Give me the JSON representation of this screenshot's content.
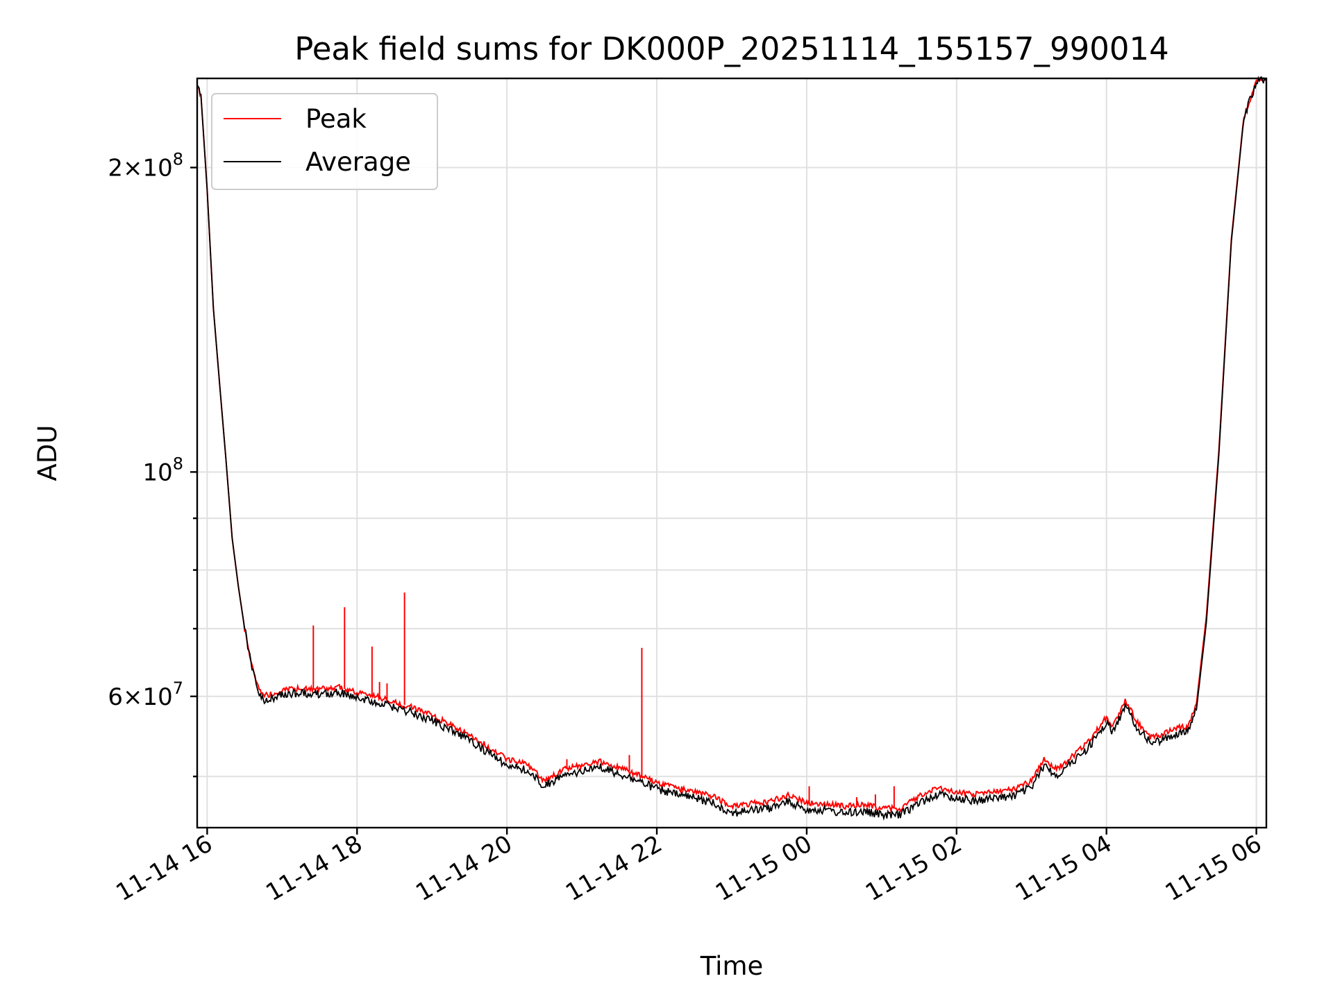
{
  "chart_data": {
    "type": "line",
    "title": "Peak field sums for DK000P_20251114_155157_990014",
    "xlabel": "Time",
    "ylabel": "ADU",
    "yscale": "log",
    "ylim": [
      44500000,
      245000000
    ],
    "xlim": [
      "2025-11-14 15:52",
      "2025-11-15 06:08"
    ],
    "grid": true,
    "legend_position": "top-left",
    "x_ticks": [
      {
        "value": "2025-11-14 16:00",
        "label": "11-14 16"
      },
      {
        "value": "2025-11-14 18:00",
        "label": "11-14 18"
      },
      {
        "value": "2025-11-14 20:00",
        "label": "11-14 20"
      },
      {
        "value": "2025-11-14 22:00",
        "label": "11-14 22"
      },
      {
        "value": "2025-11-15 00:00",
        "label": "11-15 00"
      },
      {
        "value": "2025-11-15 02:00",
        "label": "11-15 02"
      },
      {
        "value": "2025-11-15 04:00",
        "label": "11-15 04"
      },
      {
        "value": "2025-11-15 06:00",
        "label": "11-15 06"
      }
    ],
    "y_ticks": [
      {
        "value": 200000000,
        "mantissa": "2",
        "exponent": "8"
      },
      {
        "value": 100000000,
        "mantissa": "",
        "exponent": "8"
      },
      {
        "value": 60000000,
        "mantissa": "6",
        "exponent": "7"
      }
    ],
    "y_minor_ticks": [
      50000000,
      70000000,
      80000000,
      90000000
    ],
    "series": [
      {
        "name": "Peak",
        "color": "#ff0000",
        "points": [
          [
            "2025-11-14 15:52",
            240000000
          ],
          [
            "2025-11-14 15:55",
            236000000
          ],
          [
            "2025-11-14 16:00",
            190000000
          ],
          [
            "2025-11-14 16:05",
            145000000
          ],
          [
            "2025-11-14 16:10",
            122000000
          ],
          [
            "2025-11-14 16:15",
            103000000
          ],
          [
            "2025-11-14 16:20",
            86000000
          ],
          [
            "2025-11-14 16:25",
            77000000
          ],
          [
            "2025-11-14 16:30",
            70000000
          ],
          [
            "2025-11-14 16:35",
            65000000
          ],
          [
            "2025-11-14 16:40",
            61500000
          ],
          [
            "2025-11-14 16:45",
            60000000
          ],
          [
            "2025-11-14 16:50",
            60300000
          ],
          [
            "2025-11-14 17:00",
            60800000
          ],
          [
            "2025-11-14 17:15",
            61200000
          ],
          [
            "2025-11-14 17:30",
            61000000
          ],
          [
            "2025-11-14 17:45",
            61300000
          ],
          [
            "2025-11-14 18:00",
            60500000
          ],
          [
            "2025-11-14 18:15",
            60000000
          ],
          [
            "2025-11-14 18:30",
            59200000
          ],
          [
            "2025-11-14 18:45",
            58500000
          ],
          [
            "2025-11-14 19:00",
            57500000
          ],
          [
            "2025-11-14 19:15",
            56200000
          ],
          [
            "2025-11-14 19:30",
            55000000
          ],
          [
            "2025-11-14 19:45",
            53500000
          ],
          [
            "2025-11-14 20:00",
            52000000
          ],
          [
            "2025-11-14 20:15",
            51500000
          ],
          [
            "2025-11-14 20:30",
            49500000
          ],
          [
            "2025-11-14 20:45",
            50800000
          ],
          [
            "2025-11-14 21:00",
            51300000
          ],
          [
            "2025-11-14 21:15",
            51700000
          ],
          [
            "2025-11-14 21:30",
            51000000
          ],
          [
            "2025-11-14 21:45",
            50200000
          ],
          [
            "2025-11-14 22:00",
            49300000
          ],
          [
            "2025-11-14 22:15",
            48700000
          ],
          [
            "2025-11-14 22:30",
            48300000
          ],
          [
            "2025-11-14 22:45",
            47800000
          ],
          [
            "2025-11-14 23:00",
            46700000
          ],
          [
            "2025-11-14 23:15",
            47000000
          ],
          [
            "2025-11-14 23:30",
            47200000
          ],
          [
            "2025-11-14 23:45",
            47900000
          ],
          [
            "2025-11-15 00:00",
            47100000
          ],
          [
            "2025-11-15 00:15",
            47000000
          ],
          [
            "2025-11-15 00:30",
            46700000
          ],
          [
            "2025-11-15 00:45",
            46900000
          ],
          [
            "2025-11-15 01:00",
            46500000
          ],
          [
            "2025-11-15 01:15",
            46500000
          ],
          [
            "2025-11-15 01:30",
            47800000
          ],
          [
            "2025-11-15 01:45",
            48700000
          ],
          [
            "2025-11-15 02:00",
            48300000
          ],
          [
            "2025-11-15 02:15",
            48000000
          ],
          [
            "2025-11-15 02:30",
            48300000
          ],
          [
            "2025-11-15 02:45",
            48500000
          ],
          [
            "2025-11-15 03:00",
            49500000
          ],
          [
            "2025-11-15 03:10",
            52000000
          ],
          [
            "2025-11-15 03:20",
            50800000
          ],
          [
            "2025-11-15 03:30",
            52000000
          ],
          [
            "2025-11-15 03:45",
            54000000
          ],
          [
            "2025-11-15 04:00",
            57200000
          ],
          [
            "2025-11-15 04:05",
            56000000
          ],
          [
            "2025-11-15 04:15",
            59500000
          ],
          [
            "2025-11-15 04:25",
            56500000
          ],
          [
            "2025-11-15 04:35",
            54700000
          ],
          [
            "2025-11-15 04:45",
            55000000
          ],
          [
            "2025-11-15 04:55",
            55800000
          ],
          [
            "2025-11-15 05:05",
            56000000
          ],
          [
            "2025-11-15 05:12",
            59000000
          ],
          [
            "2025-11-15 05:20",
            72000000
          ],
          [
            "2025-11-15 05:30",
            105000000
          ],
          [
            "2025-11-15 05:40",
            170000000
          ],
          [
            "2025-11-15 05:50",
            225000000
          ],
          [
            "2025-11-15 06:00",
            243000000
          ],
          [
            "2025-11-15 06:08",
            245000000
          ]
        ],
        "spikes": [
          [
            "2025-11-14 17:25",
            70500000
          ],
          [
            "2025-11-14 17:50",
            73500000
          ],
          [
            "2025-11-14 18:12",
            67200000
          ],
          [
            "2025-11-14 18:18",
            62000000
          ],
          [
            "2025-11-14 18:24",
            61800000
          ],
          [
            "2025-11-14 18:38",
            76000000
          ],
          [
            "2025-11-14 21:38",
            52500000
          ],
          [
            "2025-11-14 21:48",
            67000000
          ],
          [
            "2025-11-14 20:48",
            52000000
          ],
          [
            "2025-11-15 00:02",
            48900000
          ],
          [
            "2025-11-15 00:40",
            47700000
          ],
          [
            "2025-11-15 00:55",
            48000000
          ],
          [
            "2025-11-15 01:10",
            48900000
          ]
        ]
      },
      {
        "name": "Average",
        "color": "#000000",
        "points": [
          [
            "2025-11-14 15:52",
            240000000
          ],
          [
            "2025-11-14 15:55",
            236000000
          ],
          [
            "2025-11-14 16:00",
            190000000
          ],
          [
            "2025-11-14 16:05",
            145000000
          ],
          [
            "2025-11-14 16:10",
            122000000
          ],
          [
            "2025-11-14 16:15",
            103000000
          ],
          [
            "2025-11-14 16:20",
            86000000
          ],
          [
            "2025-11-14 16:25",
            77000000
          ],
          [
            "2025-11-14 16:30",
            70000000
          ],
          [
            "2025-11-14 16:35",
            65000000
          ],
          [
            "2025-11-14 16:40",
            61000000
          ],
          [
            "2025-11-14 16:45",
            59300000
          ],
          [
            "2025-11-14 16:50",
            59700000
          ],
          [
            "2025-11-14 17:00",
            60200000
          ],
          [
            "2025-11-14 17:15",
            60500000
          ],
          [
            "2025-11-14 17:30",
            60300000
          ],
          [
            "2025-11-14 17:45",
            60600000
          ],
          [
            "2025-11-14 18:00",
            59800000
          ],
          [
            "2025-11-14 18:15",
            59300000
          ],
          [
            "2025-11-14 18:30",
            58500000
          ],
          [
            "2025-11-14 18:45",
            57800000
          ],
          [
            "2025-11-14 19:00",
            56800000
          ],
          [
            "2025-11-14 19:15",
            55500000
          ],
          [
            "2025-11-14 19:30",
            54300000
          ],
          [
            "2025-11-14 19:45",
            52800000
          ],
          [
            "2025-11-14 20:00",
            51300000
          ],
          [
            "2025-11-14 20:15",
            50800000
          ],
          [
            "2025-11-14 20:30",
            48900000
          ],
          [
            "2025-11-14 20:45",
            50100000
          ],
          [
            "2025-11-14 21:00",
            50600000
          ],
          [
            "2025-11-14 21:15",
            51000000
          ],
          [
            "2025-11-14 21:30",
            50300000
          ],
          [
            "2025-11-14 21:45",
            49500000
          ],
          [
            "2025-11-14 22:00",
            48600000
          ],
          [
            "2025-11-14 22:15",
            48000000
          ],
          [
            "2025-11-14 22:30",
            47600000
          ],
          [
            "2025-11-14 22:45",
            47100000
          ],
          [
            "2025-11-14 23:00",
            46000000
          ],
          [
            "2025-11-14 23:15",
            46300000
          ],
          [
            "2025-11-14 23:30",
            46500000
          ],
          [
            "2025-11-14 23:45",
            47200000
          ],
          [
            "2025-11-15 00:00",
            46400000
          ],
          [
            "2025-11-15 00:15",
            46300000
          ],
          [
            "2025-11-15 00:30",
            46000000
          ],
          [
            "2025-11-15 00:45",
            46200000
          ],
          [
            "2025-11-15 01:00",
            45800000
          ],
          [
            "2025-11-15 01:15",
            45800000
          ],
          [
            "2025-11-15 01:30",
            47100000
          ],
          [
            "2025-11-15 01:45",
            48000000
          ],
          [
            "2025-11-15 02:00",
            47600000
          ],
          [
            "2025-11-15 02:15",
            47300000
          ],
          [
            "2025-11-15 02:30",
            47600000
          ],
          [
            "2025-11-15 02:45",
            47800000
          ],
          [
            "2025-11-15 03:00",
            48800000
          ],
          [
            "2025-11-15 03:10",
            51300000
          ],
          [
            "2025-11-15 03:20",
            50100000
          ],
          [
            "2025-11-15 03:30",
            51300000
          ],
          [
            "2025-11-15 03:45",
            53300000
          ],
          [
            "2025-11-15 04:00",
            56500000
          ],
          [
            "2025-11-15 04:05",
            55300000
          ],
          [
            "2025-11-15 04:15",
            58700000
          ],
          [
            "2025-11-15 04:25",
            55800000
          ],
          [
            "2025-11-15 04:35",
            54000000
          ],
          [
            "2025-11-15 04:45",
            54300000
          ],
          [
            "2025-11-15 04:55",
            55100000
          ],
          [
            "2025-11-15 05:05",
            55300000
          ],
          [
            "2025-11-15 05:12",
            58200000
          ],
          [
            "2025-11-15 05:20",
            71000000
          ],
          [
            "2025-11-15 05:30",
            104000000
          ],
          [
            "2025-11-15 05:40",
            169000000
          ],
          [
            "2025-11-15 05:50",
            224000000
          ],
          [
            "2025-11-15 06:00",
            243000000
          ],
          [
            "2025-11-15 06:08",
            245000000
          ]
        ]
      }
    ]
  }
}
